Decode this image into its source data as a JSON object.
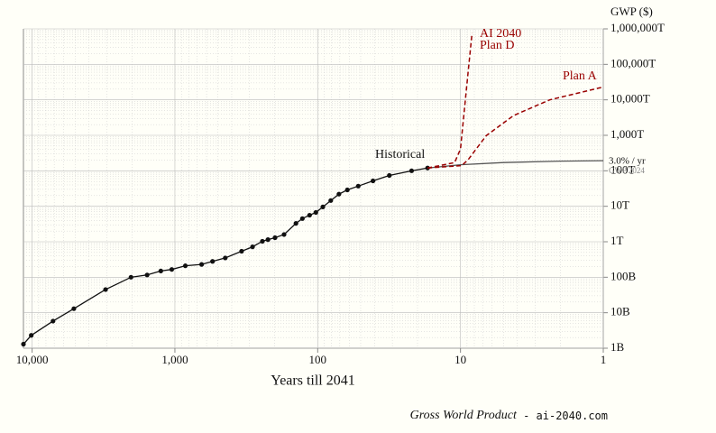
{
  "chart_data": {
    "type": "line",
    "y_label": "GWP ($)",
    "x_label": "Years till 2041",
    "footer": "Gross World Product",
    "footer_site": " - ai-2040.com",
    "annotations": [
      "AI 2040",
      "GWP 2024"
    ],
    "xscale": "log",
    "yscale": "log",
    "x_reversed": true,
    "grid": true,
    "minor_grid": true,
    "xlim": [
      11500,
      1
    ],
    "ylim": [
      1000000000.0,
      1e+18
    ],
    "xticks": [
      {
        "value": 10000,
        "label": "10,000"
      },
      {
        "value": 1000,
        "label": "1,000"
      },
      100,
      10,
      1
    ],
    "yticks": [
      {
        "value": 1000000000.0,
        "label": "1B"
      },
      {
        "value": 10000000000.0,
        "label": "10B"
      },
      {
        "value": 100000000000.0,
        "label": "100B"
      },
      {
        "value": 1000000000000.0,
        "label": "1T"
      },
      {
        "value": 10000000000000.0,
        "label": "10T"
      },
      {
        "value": 100000000000000.0,
        "label": "100T"
      },
      {
        "value": 1000000000000000.0,
        "label": "1,000T"
      },
      {
        "value": 1e+16,
        "label": "10,000T"
      },
      {
        "value": 1e+17,
        "label": "100,000T"
      },
      {
        "value": 1e+18,
        "label": "1,000,000T"
      }
    ],
    "series": [
      {
        "name": "Historical",
        "color": "#111111",
        "dash": false,
        "markers": true,
        "x": [
          11500,
          10140,
          7140,
          5100,
          3060,
          2030,
          1565,
          1255,
          1052,
          845,
          650,
          545,
          444,
          341,
          286,
          244,
          223,
          199,
          172,
          142,
          128,
          114,
          103,
          92,
          81,
          71,
          62,
          52,
          41,
          31.5,
          22,
          17
        ],
        "values": [
          1300000000.0,
          2300000000.0,
          5800000000.0,
          13000000000.0,
          45000000000.0,
          100000000000.0,
          116000000000.0,
          150000000000.0,
          166000000000.0,
          210000000000.0,
          230000000000.0,
          280000000000.0,
          350000000000.0,
          540000000000.0,
          720000000000.0,
          1030000000000.0,
          1150000000000.0,
          1300000000000.0,
          1600000000000.0,
          3300000000000.0,
          4500000000000.0,
          5600000000000.0,
          6700000000000.0,
          9600000000000.0,
          14500000000000.0,
          22000000000000.0,
          29000000000000.0,
          37000000000000.0,
          52000000000000.0,
          74000000000000.0,
          100000000000000.0,
          120000000000000.0
        ]
      },
      {
        "name": "3.0% / yr",
        "color": "#555555",
        "dash": false,
        "markers": false,
        "x": [
          17,
          10,
          5,
          2,
          1
        ],
        "values": [
          120000000000000.0,
          148000000000000.0,
          171000000000000.0,
          187000000000000.0,
          193000000000000.0
        ]
      },
      {
        "name": "Plan D",
        "color": "#990000",
        "dash": true,
        "markers": false,
        "x": [
          17,
          11,
          10,
          9.1,
          8.3
        ],
        "values": [
          120000000000000.0,
          170000000000000.0,
          410000000000000.0,
          1.9e+16,
          7.6e+17
        ]
      },
      {
        "name": "Plan A",
        "color": "#990000",
        "dash": true,
        "markers": false,
        "x": [
          17,
          9.8,
          8.8,
          6.6,
          4.25,
          2.37,
          1
        ],
        "values": [
          120000000000000.0,
          140000000000000.0,
          210000000000000.0,
          980000000000000.0,
          3600000000000000.0,
          1e+16,
          2.3e+16
        ]
      }
    ]
  }
}
